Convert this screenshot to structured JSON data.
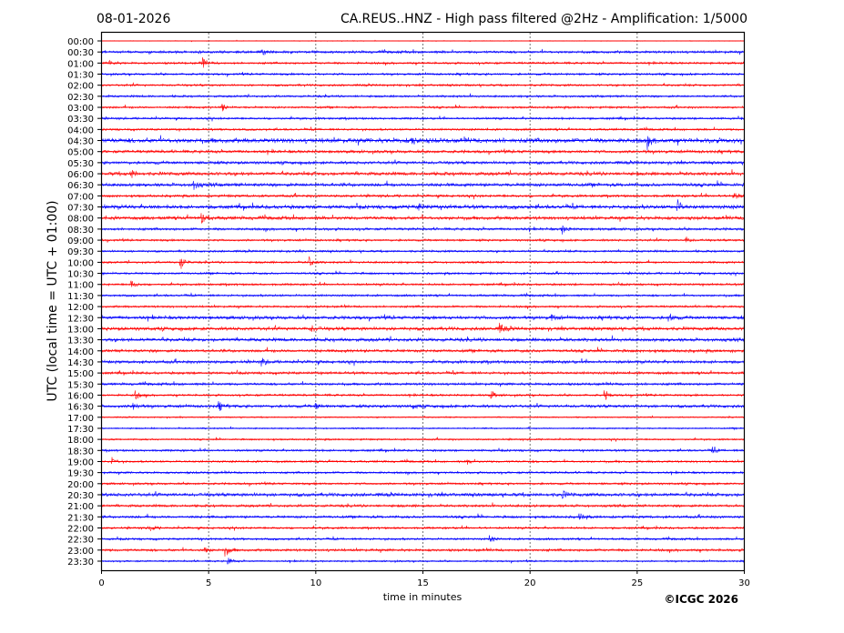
{
  "chart_data": {
    "type": "line",
    "title_left": "08-01-2026",
    "title_right": "CA.REUS..HNZ - High pass filtered @2Hz - Amplification: 1/5000",
    "xlabel": "time in minutes",
    "ylabel": "UTC (local time = UTC + 01:00)",
    "xlim": [
      0,
      30
    ],
    "x_ticks": [
      "0",
      "5",
      "10",
      "15",
      "20",
      "25",
      "30"
    ],
    "x_tick_values": [
      0,
      5,
      10,
      15,
      20,
      25,
      30
    ],
    "grid": "vertical dotted at every 5 minutes",
    "row_labels": [
      "00:00",
      "00:30",
      "01:00",
      "01:30",
      "02:00",
      "02:30",
      "03:00",
      "03:30",
      "04:00",
      "04:30",
      "05:00",
      "05:30",
      "06:00",
      "06:30",
      "07:00",
      "07:30",
      "08:00",
      "08:30",
      "09:00",
      "09:30",
      "10:00",
      "10:30",
      "11:00",
      "11:30",
      "12:00",
      "12:30",
      "13:00",
      "13:30",
      "14:00",
      "14:30",
      "15:00",
      "15:30",
      "16:00",
      "16:30",
      "17:00",
      "17:30",
      "18:00",
      "18:30",
      "19:00",
      "19:30",
      "20:00",
      "20:30",
      "21:00",
      "21:30",
      "22:00",
      "22:30",
      "23:00",
      "23:30"
    ],
    "series_colors": [
      "#ff0000",
      "#0000ff"
    ],
    "row_noise_levels": [
      0.3,
      1.2,
      1,
      1,
      1,
      1,
      1,
      1,
      1,
      2.2,
      1.4,
      1.4,
      1.6,
      1.6,
      1.2,
      1.8,
      1.6,
      1.2,
      1,
      1,
      1,
      1,
      1,
      1,
      1,
      1.6,
      1.6,
      1.6,
      1.4,
      1.4,
      1.2,
      1.2,
      1,
      1.4,
      0.6,
      0.7,
      0.8,
      1,
      1,
      1,
      1,
      1.6,
      1.2,
      1.2,
      1,
      1,
      1.2,
      0.8
    ],
    "events": [
      {
        "row": 1,
        "minute": 7.5,
        "amp": 3
      },
      {
        "row": 2,
        "minute": 4.7,
        "amp": 6
      },
      {
        "row": 2,
        "minute": 0.4,
        "amp": 3
      },
      {
        "row": 6,
        "minute": 5.6,
        "amp": 4
      },
      {
        "row": 9,
        "minute": 25.5,
        "amp": 5
      },
      {
        "row": 9,
        "minute": 14.5,
        "amp": 4
      },
      {
        "row": 12,
        "minute": 1.4,
        "amp": 4
      },
      {
        "row": 13,
        "minute": 4.3,
        "amp": 5
      },
      {
        "row": 14,
        "minute": 29.5,
        "amp": 5
      },
      {
        "row": 15,
        "minute": 26.9,
        "amp": 6
      },
      {
        "row": 15,
        "minute": 14.8,
        "amp": 4
      },
      {
        "row": 16,
        "minute": 4.7,
        "amp": 6
      },
      {
        "row": 17,
        "minute": 21.5,
        "amp": 5
      },
      {
        "row": 18,
        "minute": 27.3,
        "amp": 3
      },
      {
        "row": 20,
        "minute": 3.7,
        "amp": 7
      },
      {
        "row": 20,
        "minute": 9.7,
        "amp": 6
      },
      {
        "row": 22,
        "minute": 1.4,
        "amp": 4
      },
      {
        "row": 25,
        "minute": 21,
        "amp": 4
      },
      {
        "row": 25,
        "minute": 26.5,
        "amp": 4
      },
      {
        "row": 26,
        "minute": 18.6,
        "amp": 5
      },
      {
        "row": 26,
        "minute": 9.8,
        "amp": 4
      },
      {
        "row": 29,
        "minute": 7.5,
        "amp": 4
      },
      {
        "row": 32,
        "minute": 1.6,
        "amp": 4
      },
      {
        "row": 32,
        "minute": 18.2,
        "amp": 4
      },
      {
        "row": 32,
        "minute": 23.5,
        "amp": 5
      },
      {
        "row": 33,
        "minute": 1.5,
        "amp": 4
      },
      {
        "row": 33,
        "minute": 5.5,
        "amp": 4
      },
      {
        "row": 33,
        "minute": 10,
        "amp": 3
      },
      {
        "row": 33,
        "minute": 14.5,
        "amp": 3
      },
      {
        "row": 37,
        "minute": 28.5,
        "amp": 4
      },
      {
        "row": 38,
        "minute": 0.5,
        "amp": 4
      },
      {
        "row": 38,
        "minute": 17.1,
        "amp": 3
      },
      {
        "row": 41,
        "minute": 21.5,
        "amp": 4
      },
      {
        "row": 43,
        "minute": 22.3,
        "amp": 4
      },
      {
        "row": 44,
        "minute": 2.3,
        "amp": 3
      },
      {
        "row": 45,
        "minute": 18.1,
        "amp": 4
      },
      {
        "row": 46,
        "minute": 5.8,
        "amp": 6
      },
      {
        "row": 46,
        "minute": 4.8,
        "amp": 4
      },
      {
        "row": 47,
        "minute": 5.9,
        "amp": 4
      }
    ]
  },
  "footer": {
    "copyright": "©ICGC 2026"
  }
}
